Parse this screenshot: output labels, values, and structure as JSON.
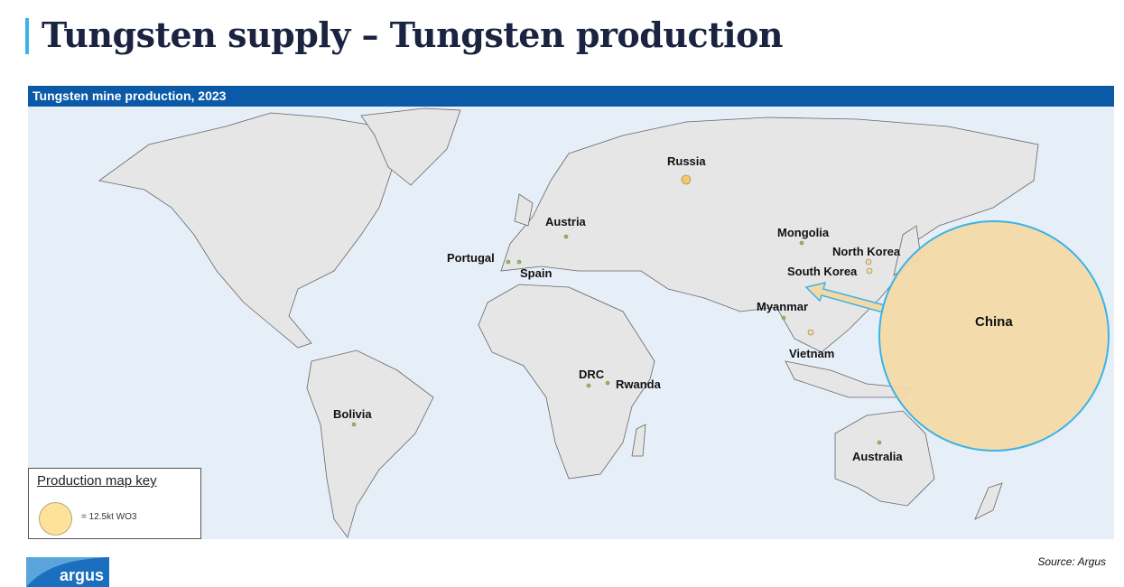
{
  "title": "Tungsten supply – Tungsten production",
  "map_header": "Tungsten mine production, 2023",
  "colors": {
    "accent": "#3ab4e6",
    "header": "#0a5aa8",
    "bubble": "#f4d9a6",
    "bubble_outline": "#3ab4e6",
    "land": "#e6e6e6",
    "ocean": "#e6eef8"
  },
  "countries": [
    {
      "name": "Russia"
    },
    {
      "name": "Austria"
    },
    {
      "name": "Mongolia"
    },
    {
      "name": "North Korea"
    },
    {
      "name": "Portugal"
    },
    {
      "name": "Spain"
    },
    {
      "name": "South Korea"
    },
    {
      "name": "Myanmar"
    },
    {
      "name": "China"
    },
    {
      "name": "Vietnam"
    },
    {
      "name": "DRC"
    },
    {
      "name": "Rwanda"
    },
    {
      "name": "Bolivia"
    },
    {
      "name": "Australia"
    }
  ],
  "key": {
    "title": "Production map key",
    "value": "= 12.5kt WO3"
  },
  "source": "Source: Argus",
  "logo": "argus"
}
